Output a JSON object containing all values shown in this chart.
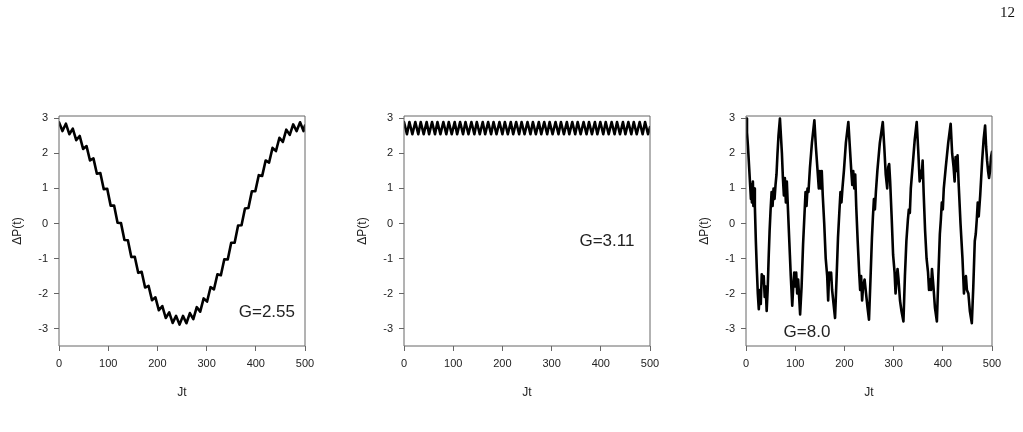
{
  "chart_data": [
    {
      "type": "other",
      "annotations": [
        "12"
      ]
    },
    {
      "type": "line",
      "xlabel": "Jt",
      "ylabel": "ΔP(t)",
      "color": "#000000",
      "xlim": [
        0,
        500
      ],
      "ylim": [
        -3.5,
        3.07
      ],
      "xticks": [
        0,
        100,
        200,
        300,
        400,
        500
      ],
      "yticks": [
        -3,
        -2,
        -1,
        0,
        1,
        2,
        3
      ],
      "annotations": [
        "G=2.55"
      ],
      "x": [
        0,
        7,
        14,
        21,
        28,
        35,
        42,
        49,
        56,
        63,
        70,
        77,
        84,
        91,
        98,
        105,
        112,
        119,
        126,
        133,
        140,
        147,
        154,
        161,
        168,
        175,
        182,
        189,
        196,
        203,
        210,
        217,
        224,
        231,
        238,
        245,
        252,
        259,
        266,
        273,
        280,
        287,
        294,
        301,
        308,
        315,
        322,
        329,
        336,
        343,
        350,
        357,
        364,
        371,
        378,
        385,
        392,
        399,
        406,
        413,
        420,
        427,
        434,
        441,
        448,
        455,
        462,
        469,
        476,
        483,
        490,
        497,
        500
      ],
      "values": [
        2.89,
        2.64,
        2.85,
        2.55,
        2.71,
        2.38,
        2.5,
        2.13,
        2.21,
        1.8,
        1.86,
        1.42,
        1.44,
        0.98,
        0.99,
        0.51,
        0.51,
        0.02,
        0.01,
        -0.47,
        -0.48,
        -0.96,
        -0.95,
        -1.41,
        -1.38,
        -1.83,
        -1.78,
        -2.19,
        -2.11,
        -2.48,
        -2.36,
        -2.7,
        -2.54,
        -2.84,
        -2.64,
        -2.89,
        -2.64,
        -2.85,
        -2.56,
        -2.73,
        -2.39,
        -2.52,
        -2.14,
        -2.23,
        -1.82,
        -1.88,
        -1.45,
        -1.48,
        -1.02,
        -1.03,
        -0.55,
        -0.55,
        -0.06,
        -0.05,
        0.43,
        0.44,
        0.92,
        0.92,
        1.38,
        1.36,
        1.8,
        1.74,
        2.16,
        2.07,
        2.45,
        2.33,
        2.68,
        2.53,
        2.83,
        2.64,
        2.89,
        2.64,
        2.8
      ]
    },
    {
      "type": "line",
      "xlabel": "Jt",
      "ylabel": "ΔP(t)",
      "color": "#000000",
      "xlim": [
        0,
        500
      ],
      "ylim": [
        -3.5,
        3.07
      ],
      "xticks": [
        0,
        100,
        200,
        300,
        400,
        500
      ],
      "yticks": [
        -3,
        -2,
        -1,
        0,
        1,
        2,
        3
      ],
      "annotations": [
        "G=3.11"
      ],
      "x": [
        0,
        6,
        11,
        17,
        23,
        29,
        34,
        40,
        46,
        51,
        57,
        63,
        68,
        74,
        80,
        86,
        91,
        97,
        103,
        108,
        114,
        120,
        125,
        131,
        137,
        143,
        148,
        154,
        160,
        165,
        171,
        177,
        182,
        188,
        194,
        200,
        205,
        211,
        217,
        222,
        228,
        234,
        239,
        245,
        251,
        257,
        262,
        268,
        274,
        279,
        285,
        291,
        296,
        302,
        308,
        314,
        319,
        325,
        331,
        336,
        342,
        348,
        353,
        359,
        365,
        371,
        376,
        382,
        388,
        393,
        399,
        405,
        410,
        416,
        422,
        428,
        433,
        439,
        445,
        450,
        456,
        462,
        467,
        473,
        479,
        485,
        490,
        496,
        500
      ],
      "values": [
        2.9,
        2.55,
        2.9,
        2.55,
        2.9,
        2.55,
        2.9,
        2.55,
        2.9,
        2.55,
        2.9,
        2.55,
        2.9,
        2.55,
        2.9,
        2.55,
        2.9,
        2.55,
        2.9,
        2.55,
        2.9,
        2.55,
        2.9,
        2.55,
        2.9,
        2.55,
        2.9,
        2.55,
        2.9,
        2.55,
        2.9,
        2.55,
        2.9,
        2.55,
        2.9,
        2.55,
        2.9,
        2.55,
        2.9,
        2.55,
        2.9,
        2.55,
        2.9,
        2.55,
        2.9,
        2.55,
        2.9,
        2.55,
        2.9,
        2.55,
        2.9,
        2.55,
        2.9,
        2.55,
        2.9,
        2.55,
        2.9,
        2.55,
        2.9,
        2.55,
        2.9,
        2.55,
        2.9,
        2.55,
        2.9,
        2.55,
        2.9,
        2.55,
        2.9,
        2.55,
        2.9,
        2.55,
        2.9,
        2.55,
        2.9,
        2.55,
        2.9,
        2.55,
        2.9,
        2.55,
        2.9,
        2.55,
        2.9,
        2.55,
        2.9,
        2.55,
        2.9,
        2.55,
        2.75
      ]
    },
    {
      "type": "line",
      "xlabel": "Jt",
      "ylabel": "ΔP(t)",
      "color": "#000000",
      "xlim": [
        0,
        500
      ],
      "ylim": [
        -3.5,
        3.07
      ],
      "xticks": [
        0,
        100,
        200,
        300,
        400,
        500
      ],
      "yticks": [
        -3,
        -2,
        -1,
        0,
        1,
        2,
        3
      ],
      "annotations": [
        "G=8.0"
      ],
      "x": [
        0,
        2,
        4,
        6,
        8,
        10,
        11,
        12,
        14,
        15,
        17,
        18,
        20,
        22,
        24,
        26,
        28,
        30,
        32,
        34,
        36,
        38,
        40,
        42,
        44,
        46,
        48,
        50,
        52,
        54,
        56,
        58,
        60,
        62,
        64,
        66,
        69,
        71,
        73,
        75,
        77,
        79,
        81,
        83,
        85,
        88,
        91,
        94,
        96,
        98,
        100,
        102,
        104,
        106,
        110,
        113,
        116,
        119,
        121,
        123,
        125,
        127,
        130,
        134,
        139,
        142,
        145,
        148,
        150,
        152,
        154,
        156,
        159,
        162,
        165,
        167,
        169,
        171,
        173,
        175,
        178,
        181,
        184,
        187,
        190,
        192,
        194,
        196,
        199,
        203,
        208,
        211,
        214,
        216,
        218,
        220,
        222,
        224,
        227,
        230,
        232,
        234,
        236,
        238,
        241,
        244,
        247,
        250,
        253,
        256,
        258,
        260,
        262,
        264,
        267,
        272,
        278,
        281,
        284,
        287,
        289,
        291,
        293,
        296,
        299,
        302,
        304,
        306,
        308,
        310,
        313,
        316,
        320,
        323,
        326,
        329,
        331,
        333,
        335,
        339,
        343,
        347,
        350,
        353,
        355,
        357,
        359,
        361,
        364,
        367,
        370,
        372,
        374,
        376,
        378,
        381,
        384,
        388,
        391,
        394,
        396,
        398,
        400,
        402,
        406,
        411,
        416,
        419,
        422,
        424,
        426,
        428,
        430,
        432,
        436,
        440,
        443,
        445,
        447,
        449,
        452,
        455,
        459,
        462,
        465,
        467,
        469,
        471,
        473,
        476,
        480,
        483,
        486,
        488,
        490,
        492,
        494,
        496,
        498,
        500
      ],
      "values": [
        3.0,
        2.6,
        2.2,
        1.7,
        1.2,
        0.7,
        1.1,
        0.6,
        1.2,
        0.5,
        1.0,
        0.5,
        -0.5,
        -1.3,
        -2.0,
        -2.45,
        -1.9,
        -2.3,
        -1.45,
        -1.7,
        -1.5,
        -2.1,
        -1.8,
        -2.5,
        -1.9,
        -1.0,
        -0.2,
        0.4,
        0.9,
        0.5,
        1.0,
        0.7,
        1.1,
        1.4,
        2.0,
        2.5,
        3.0,
        2.5,
        2.0,
        1.3,
        0.8,
        1.3,
        0.6,
        1.2,
        0.5,
        -0.5,
        -1.5,
        -2.35,
        -1.8,
        -1.4,
        -1.8,
        -1.4,
        -2.0,
        -1.6,
        -2.6,
        -1.8,
        -0.6,
        0.3,
        0.9,
        0.5,
        1.0,
        0.9,
        1.6,
        2.3,
        2.95,
        2.2,
        1.6,
        1.0,
        1.5,
        1.0,
        1.5,
        0.8,
        0.0,
        -1.0,
        -1.5,
        -2.2,
        -1.4,
        -1.6,
        -1.4,
        -1.9,
        -2.3,
        -2.7,
        -1.6,
        -0.4,
        0.4,
        0.9,
        0.6,
        1.0,
        1.5,
        2.3,
        2.9,
        2.2,
        1.5,
        1.1,
        1.5,
        1.0,
        1.4,
        0.5,
        -0.5,
        -1.4,
        -1.9,
        -1.5,
        -2.2,
        -1.8,
        -1.6,
        -2.0,
        -2.4,
        -2.75,
        -1.6,
        -0.4,
        0.2,
        0.7,
        0.4,
        0.9,
        1.5,
        2.3,
        2.9,
        2.2,
        1.4,
        1.0,
        1.6,
        1.7,
        1.2,
        0.2,
        -0.9,
        -1.4,
        -2.0,
        -1.6,
        -1.3,
        -1.6,
        -2.2,
        -2.5,
        -2.8,
        -1.5,
        -0.5,
        0.1,
        0.4,
        0.3,
        1.0,
        1.7,
        2.4,
        2.9,
        2.1,
        1.2,
        1.5,
        1.3,
        1.8,
        0.9,
        -0.2,
        -1.0,
        -1.4,
        -1.9,
        -1.6,
        -1.9,
        -1.3,
        -1.8,
        -2.4,
        -2.8,
        -1.5,
        -0.3,
        0.1,
        0.6,
        0.4,
        1.0,
        1.6,
        2.3,
        2.85,
        2.0,
        1.6,
        1.2,
        1.9,
        1.5,
        1.95,
        1.2,
        0.0,
        -1.0,
        -2.0,
        -1.6,
        -1.5,
        -1.9,
        -2.0,
        -2.5,
        -2.85,
        -1.8,
        -0.5,
        -0.3,
        0.1,
        0.6,
        0.2,
        0.8,
        1.8,
        2.4,
        2.8,
        2.2,
        1.8,
        1.5,
        1.3,
        1.5,
        1.9,
        2.05
      ]
    }
  ]
}
